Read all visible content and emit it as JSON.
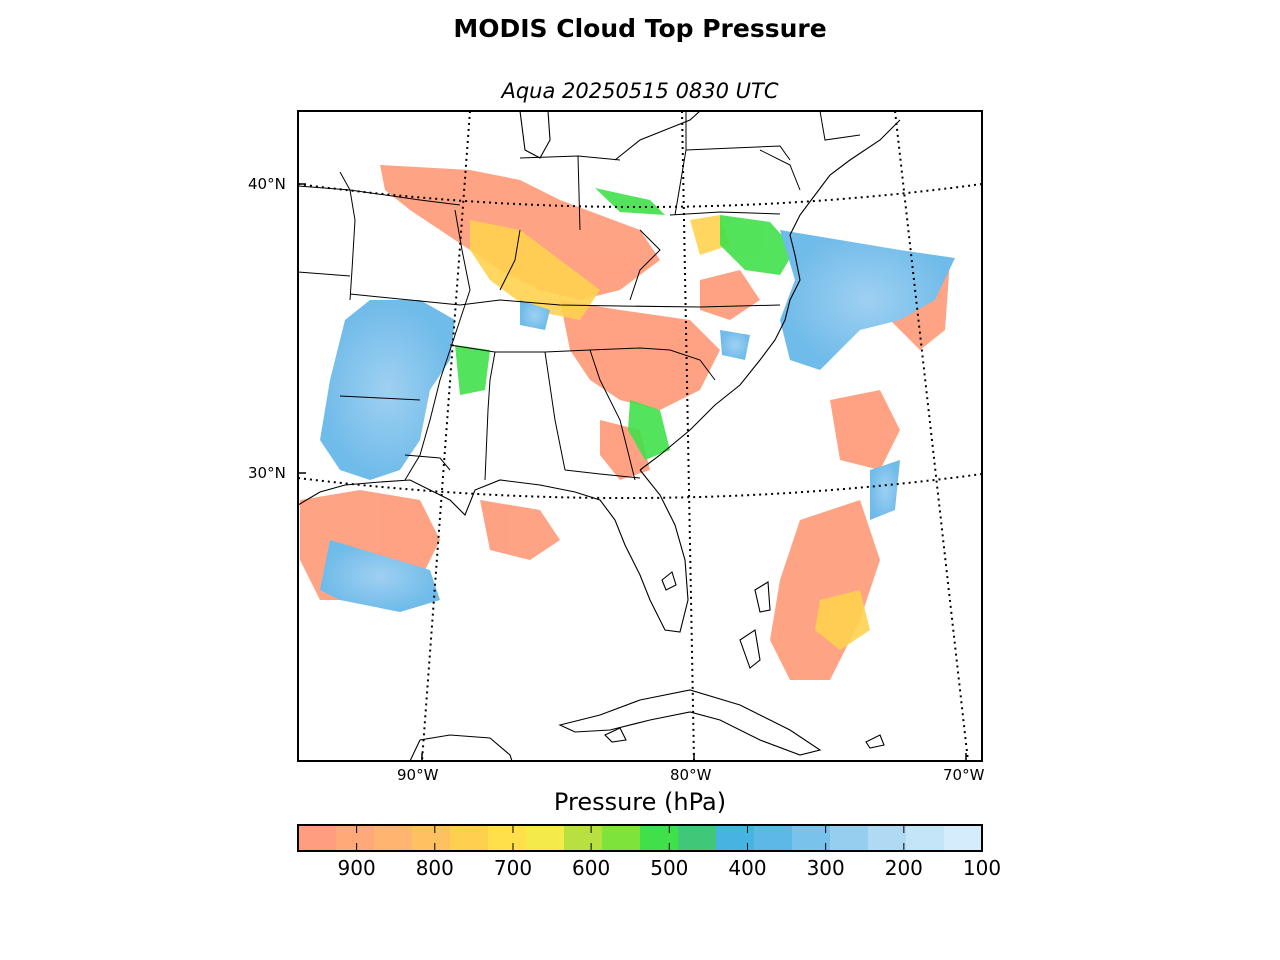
{
  "title": "MODIS Cloud Top Pressure",
  "subtitle": "Aqua 20250515 0830 UTC",
  "lat_labels": [
    "40°N",
    "30°N"
  ],
  "lon_labels": [
    "90°W",
    "80°W",
    "70°W"
  ],
  "colorbar": {
    "label": "Pressure (hPa)",
    "range": [
      975,
      100
    ],
    "tick_values": [
      900,
      800,
      700,
      600,
      500,
      400,
      300,
      200,
      100
    ],
    "tick_labels": [
      "900",
      "800",
      "700",
      "600",
      "500",
      "400",
      "300",
      "200",
      "100"
    ],
    "colors": [
      "#ff9e7e",
      "#ffa878",
      "#ffb470",
      "#ffc060",
      "#ffcf4f",
      "#ffe04a",
      "#f4ea4a",
      "#b8e040",
      "#7ee43c",
      "#40e04a",
      "#40c878",
      "#46b4e0",
      "#5cb8e6",
      "#78c2ec",
      "#96ceef",
      "#b0daf4",
      "#c4e4f8",
      "#d4ecfb"
    ]
  },
  "map": {
    "projection": "lambert-conformal",
    "grid": "dotted",
    "layers": [
      "coastlines",
      "country-borders",
      "state-borders",
      "cloud-top-pressure-swath"
    ]
  }
}
